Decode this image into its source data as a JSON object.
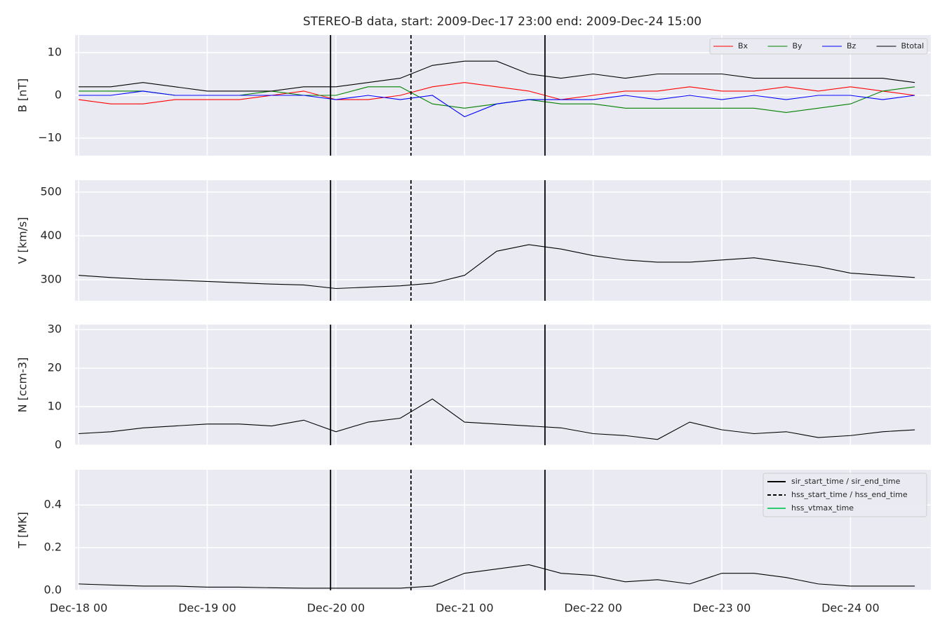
{
  "title": "STEREO-B data, start: 2009-Dec-17 23:00  end: 2009-Dec-24 15:00",
  "chart_data": [
    {
      "type": "line",
      "ylabel": "B [nT]",
      "x": [
        "2009-12-18T00:00",
        "2009-12-18T06:00",
        "2009-12-18T12:00",
        "2009-12-18T18:00",
        "2009-12-19T00:00",
        "2009-12-19T06:00",
        "2009-12-19T12:00",
        "2009-12-19T18:00",
        "2009-12-20T00:00",
        "2009-12-20T06:00",
        "2009-12-20T12:00",
        "2009-12-20T18:00",
        "2009-12-21T00:00",
        "2009-12-21T06:00",
        "2009-12-21T12:00",
        "2009-12-21T18:00",
        "2009-12-22T00:00",
        "2009-12-22T06:00",
        "2009-12-22T12:00",
        "2009-12-22T18:00",
        "2009-12-23T00:00",
        "2009-12-23T06:00",
        "2009-12-23T12:00",
        "2009-12-23T18:00",
        "2009-12-24T00:00",
        "2009-12-24T06:00",
        "2009-12-24T12:00"
      ],
      "ylim": [
        -14.1,
        14.1
      ],
      "yticks": [
        {
          "value": -10,
          "label": "−10"
        },
        0,
        10
      ],
      "grid": true,
      "legend": "upper right",
      "series": [
        {
          "name": "Bx",
          "color": "#ff0000",
          "values": [
            -1,
            -2,
            -2,
            -1,
            -1,
            -1,
            0,
            1,
            -1,
            -1,
            0,
            2,
            3,
            2,
            1,
            -1,
            0,
            1,
            1,
            2,
            1,
            1,
            2,
            1,
            2,
            1,
            0
          ]
        },
        {
          "name": "By",
          "color": "#008000",
          "values": [
            1,
            1,
            1,
            0,
            0,
            0,
            1,
            0,
            0,
            2,
            2,
            -2,
            -3,
            -2,
            -1,
            -2,
            -2,
            -3,
            -3,
            -3,
            -3,
            -3,
            -4,
            -3,
            -2,
            1,
            2
          ]
        },
        {
          "name": "Bz",
          "color": "#0000ff",
          "values": [
            0,
            0,
            1,
            0,
            0,
            0,
            0,
            0,
            -1,
            0,
            -1,
            0,
            -5,
            -2,
            -1,
            -1,
            -1,
            0,
            -1,
            0,
            -1,
            0,
            -1,
            0,
            0,
            -1,
            0
          ]
        },
        {
          "name": "Btotal",
          "color": "#000000",
          "values": [
            2,
            2,
            3,
            2,
            1,
            1,
            1,
            2,
            2,
            3,
            4,
            7,
            8,
            8,
            5,
            4,
            5,
            4,
            5,
            5,
            5,
            4,
            4,
            4,
            4,
            4,
            3
          ]
        }
      ]
    },
    {
      "type": "line",
      "ylabel": "V [km/s]",
      "x": [
        "2009-12-18T00:00",
        "2009-12-18T06:00",
        "2009-12-18T12:00",
        "2009-12-18T18:00",
        "2009-12-19T00:00",
        "2009-12-19T06:00",
        "2009-12-19T12:00",
        "2009-12-19T18:00",
        "2009-12-20T00:00",
        "2009-12-20T06:00",
        "2009-12-20T12:00",
        "2009-12-20T18:00",
        "2009-12-21T00:00",
        "2009-12-21T06:00",
        "2009-12-21T12:00",
        "2009-12-21T18:00",
        "2009-12-22T00:00",
        "2009-12-22T06:00",
        "2009-12-22T12:00",
        "2009-12-22T18:00",
        "2009-12-23T00:00",
        "2009-12-23T06:00",
        "2009-12-23T12:00",
        "2009-12-23T18:00",
        "2009-12-24T00:00",
        "2009-12-24T06:00",
        "2009-12-24T12:00"
      ],
      "ylim": [
        252,
        527
      ],
      "yticks": [
        300,
        400,
        500
      ],
      "grid": true,
      "series": [
        {
          "color": "#000000",
          "values": [
            310,
            305,
            301,
            299,
            296,
            293,
            290,
            288,
            280,
            283,
            286,
            292,
            310,
            365,
            380,
            370,
            355,
            345,
            340,
            340,
            345,
            350,
            340,
            330,
            315,
            310,
            305
          ]
        }
      ]
    },
    {
      "type": "line",
      "ylabel": "N [ccm-3]",
      "x": [
        "2009-12-18T00:00",
        "2009-12-18T06:00",
        "2009-12-18T12:00",
        "2009-12-18T18:00",
        "2009-12-19T00:00",
        "2009-12-19T06:00",
        "2009-12-19T12:00",
        "2009-12-19T18:00",
        "2009-12-20T00:00",
        "2009-12-20T06:00",
        "2009-12-20T12:00",
        "2009-12-20T18:00",
        "2009-12-21T00:00",
        "2009-12-21T06:00",
        "2009-12-21T12:00",
        "2009-12-21T18:00",
        "2009-12-22T00:00",
        "2009-12-22T06:00",
        "2009-12-22T12:00",
        "2009-12-22T18:00",
        "2009-12-23T00:00",
        "2009-12-23T06:00",
        "2009-12-23T12:00",
        "2009-12-23T18:00",
        "2009-12-24T00:00",
        "2009-12-24T06:00",
        "2009-12-24T12:00"
      ],
      "ylim": [
        0,
        31.3
      ],
      "yticks": [
        0,
        10,
        20,
        30
      ],
      "grid": true,
      "series": [
        {
          "color": "#000000",
          "values": [
            3,
            3.5,
            4.5,
            5,
            5.5,
            5.5,
            5,
            6.5,
            3.5,
            6,
            7,
            12,
            6,
            5.5,
            5,
            4.5,
            3,
            2.5,
            1.5,
            6,
            4,
            3,
            3.5,
            2,
            2.5,
            3.5,
            4
          ]
        }
      ]
    },
    {
      "type": "line",
      "ylabel": "T [MK]",
      "x": [
        "2009-12-18T00:00",
        "2009-12-18T06:00",
        "2009-12-18T12:00",
        "2009-12-18T18:00",
        "2009-12-19T00:00",
        "2009-12-19T06:00",
        "2009-12-19T12:00",
        "2009-12-19T18:00",
        "2009-12-20T00:00",
        "2009-12-20T06:00",
        "2009-12-20T12:00",
        "2009-12-20T18:00",
        "2009-12-21T00:00",
        "2009-12-21T06:00",
        "2009-12-21T12:00",
        "2009-12-21T18:00",
        "2009-12-22T00:00",
        "2009-12-22T06:00",
        "2009-12-22T12:00",
        "2009-12-22T18:00",
        "2009-12-23T00:00",
        "2009-12-23T06:00",
        "2009-12-23T12:00",
        "2009-12-23T18:00",
        "2009-12-24T00:00",
        "2009-12-24T06:00",
        "2009-12-24T12:00"
      ],
      "xlim": [
        "2009-12-17T23:20",
        "2009-12-24T15:00"
      ],
      "xticks": [
        {
          "value": "2009-12-18T00:00",
          "label": "Dec-18 00"
        },
        {
          "value": "2009-12-19T00:00",
          "label": "Dec-19 00"
        },
        {
          "value": "2009-12-20T00:00",
          "label": "Dec-20 00"
        },
        {
          "value": "2009-12-21T00:00",
          "label": "Dec-21 00"
        },
        {
          "value": "2009-12-22T00:00",
          "label": "Dec-22 00"
        },
        {
          "value": "2009-12-23T00:00",
          "label": "Dec-23 00"
        },
        {
          "value": "2009-12-24T00:00",
          "label": "Dec-24 00"
        }
      ],
      "ylim": [
        0,
        0.565
      ],
      "yticks": [
        {
          "value": 0,
          "label": "0.0"
        },
        0.2,
        0.4
      ],
      "grid": true,
      "legend": "upper right",
      "series": [
        {
          "color": "#000000",
          "values": [
            0.03,
            0.025,
            0.02,
            0.02,
            0.015,
            0.015,
            0.012,
            0.01,
            0.01,
            0.01,
            0.01,
            0.02,
            0.08,
            0.1,
            0.12,
            0.08,
            0.07,
            0.04,
            0.05,
            0.03,
            0.08,
            0.08,
            0.06,
            0.03,
            0.02,
            0.02,
            0.02
          ]
        }
      ],
      "events": [
        {
          "name": "sir_start_time / sir_end_time",
          "color": "#000000",
          "style": "solid",
          "x": [
            "2009-12-19T23:00",
            "2009-12-21T15:00"
          ]
        },
        {
          "name": "hss_start_time / hss_end_time",
          "color": "#000000",
          "style": "dashed",
          "x": [
            "2009-12-20T14:00"
          ]
        },
        {
          "name": "hss_vtmax_time",
          "color": "#2ecc71",
          "style": "solid",
          "x": []
        }
      ]
    }
  ]
}
